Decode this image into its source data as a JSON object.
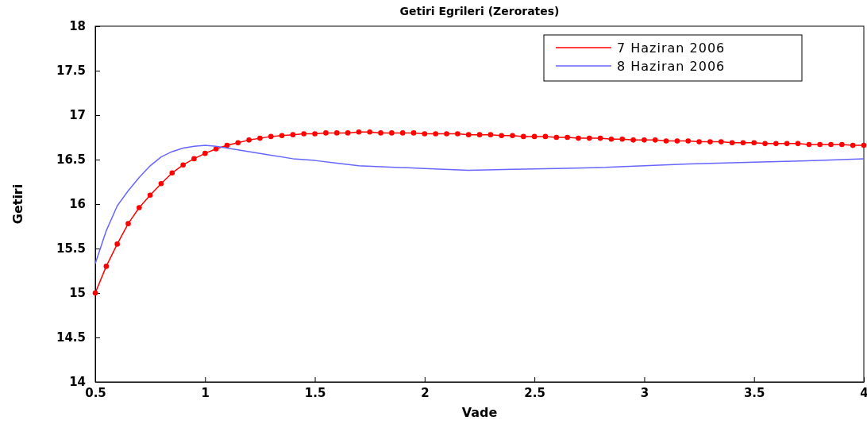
{
  "chart_data": {
    "type": "line",
    "title": "Getiri  Egrileri (Zerorates)",
    "xlabel": "Vade",
    "ylabel": "Getiri",
    "xlim": [
      0.5,
      4
    ],
    "xticks": [
      0.5,
      1,
      1.5,
      2,
      2.5,
      3,
      3.5,
      4
    ],
    "ylim": [
      14,
      18
    ],
    "yticks": [
      14,
      14.5,
      15,
      15.5,
      16,
      16.5,
      17,
      17.5,
      18
    ],
    "grid": false,
    "legend": "top right",
    "series": [
      {
        "name": "7 Haziran 2006",
        "color": "#ff0000",
        "marker": "circle",
        "x": [
          0.5,
          0.55,
          0.6,
          0.65,
          0.7,
          0.75,
          0.8,
          0.85,
          0.9,
          0.95,
          1,
          1.05,
          1.1,
          1.15,
          1.2,
          1.25,
          1.3,
          1.35,
          1.4,
          1.45,
          1.5,
          1.55,
          1.6,
          1.65,
          1.7,
          1.75,
          1.8,
          1.85,
          1.9,
          1.95,
          2,
          2.05,
          2.1,
          2.15,
          2.2,
          2.25,
          2.3,
          2.35,
          2.4,
          2.45,
          2.5,
          2.55,
          2.6,
          2.65,
          2.7,
          2.75,
          2.8,
          2.85,
          2.9,
          2.95,
          3,
          3.05,
          3.1,
          3.15,
          3.2,
          3.25,
          3.3,
          3.35,
          3.4,
          3.45,
          3.5,
          3.55,
          3.6,
          3.65,
          3.7,
          3.75,
          3.8,
          3.85,
          3.9,
          3.95,
          4
        ],
        "values": [
          15.0,
          15.3,
          15.55,
          15.78,
          15.96,
          16.1,
          16.23,
          16.35,
          16.44,
          16.51,
          16.57,
          16.62,
          16.66,
          16.69,
          16.72,
          16.74,
          16.76,
          16.77,
          16.78,
          16.79,
          16.79,
          16.8,
          16.8,
          16.8,
          16.81,
          16.81,
          16.8,
          16.8,
          16.8,
          16.8,
          16.79,
          16.79,
          16.79,
          16.79,
          16.78,
          16.78,
          16.78,
          16.77,
          16.77,
          16.76,
          16.76,
          16.76,
          16.75,
          16.75,
          16.74,
          16.74,
          16.74,
          16.73,
          16.73,
          16.72,
          16.72,
          16.72,
          16.71,
          16.71,
          16.71,
          16.7,
          16.7,
          16.7,
          16.69,
          16.69,
          16.69,
          16.68,
          16.68,
          16.68,
          16.68,
          16.67,
          16.67,
          16.67,
          16.67,
          16.66,
          16.66
        ]
      },
      {
        "name": "8 Haziran 2006",
        "color": "#6666ff",
        "marker": "none",
        "x": [
          0.5,
          0.55,
          0.6,
          0.65,
          0.7,
          0.75,
          0.8,
          0.85,
          0.9,
          0.95,
          1,
          1.05,
          1.1,
          1.2,
          1.3,
          1.4,
          1.5,
          1.6,
          1.7,
          1.8,
          2,
          2.2,
          2.4,
          2.6,
          2.8,
          3,
          3.2,
          3.5,
          3.8,
          4
        ],
        "values": [
          15.33,
          15.7,
          15.98,
          16.15,
          16.3,
          16.43,
          16.53,
          16.59,
          16.63,
          16.65,
          16.66,
          16.65,
          16.63,
          16.59,
          16.55,
          16.51,
          16.49,
          16.46,
          16.43,
          16.42,
          16.4,
          16.38,
          16.39,
          16.4,
          16.41,
          16.43,
          16.45,
          16.47,
          16.49,
          16.51
        ]
      }
    ]
  }
}
